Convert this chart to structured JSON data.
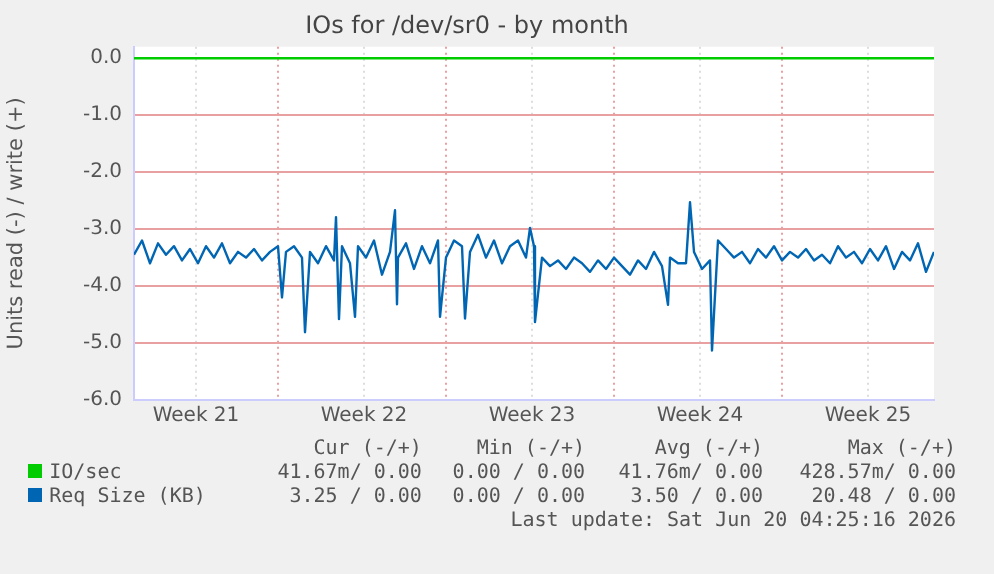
{
  "chart_data": {
    "type": "line",
    "title": "IOs for /dev/sr0 - by month",
    "ylabel": "Units read (-) / write (+)",
    "xlim": [
      "2026-05-19",
      "2026-06-21T08:00"
    ],
    "xticks": [
      {
        "value": "2026-05-21T14:00",
        "label": "Week 21"
      },
      {
        "value": "2026-05-25",
        "label": null
      },
      {
        "value": "2026-05-28T14:00",
        "label": "Week 22"
      },
      {
        "value": "2026-06-01",
        "label": null
      },
      {
        "value": "2026-06-04T14:00",
        "label": "Week 23"
      },
      {
        "value": "2026-06-08",
        "label": null
      },
      {
        "value": "2026-06-11T14:00",
        "label": "Week 24"
      },
      {
        "value": "2026-06-15",
        "label": null
      },
      {
        "value": "2026-06-18T14:00",
        "label": "Week 25"
      }
    ],
    "ylim": [
      -6,
      0.2
    ],
    "yticks": [
      {
        "value": 0,
        "label": "0.0"
      },
      {
        "value": -1,
        "label": "-1.0"
      },
      {
        "value": -2,
        "label": "-2.0"
      },
      {
        "value": -3,
        "label": "-3.0"
      },
      {
        "value": -4,
        "label": "-4.0"
      },
      {
        "value": -5,
        "label": "-5.0"
      },
      {
        "value": -6,
        "label": "-6.0"
      }
    ],
    "grid": true,
    "legend": "bottom left",
    "marker": "none",
    "line_style": "solid",
    "series": [
      {
        "name": "IO/sec",
        "color": "#00cc00",
        "x": [
          "2026-05-19",
          "2026-06-21T08:00"
        ],
        "values": [
          0,
          0
        ]
      },
      {
        "name": "Req Size (KB)",
        "color": "#0066b3",
        "x": [
          "2026-05-19T00:00",
          "2026-05-19T08:00",
          "2026-05-19T16:00",
          "2026-05-20T00:00",
          "2026-05-20T08:00",
          "2026-05-20T16:00",
          "2026-05-21T00:00",
          "2026-05-21T08:00",
          "2026-05-21T16:00",
          "2026-05-22T00:00",
          "2026-05-22T08:00",
          "2026-05-22T16:00",
          "2026-05-23T00:00",
          "2026-05-23T08:00",
          "2026-05-23T16:00",
          "2026-05-24T00:00",
          "2026-05-24T08:00",
          "2026-05-24T16:00",
          "2026-05-25T00:00",
          "2026-05-25T04:00",
          "2026-05-25T08:00",
          "2026-05-25T16:00",
          "2026-05-26T00:00",
          "2026-05-26T03:00",
          "2026-05-26T08:00",
          "2026-05-26T16:00",
          "2026-05-27T00:00",
          "2026-05-27T08:00",
          "2026-05-27T10:00",
          "2026-05-27T13:00",
          "2026-05-27T16:00",
          "2026-05-28T00:00",
          "2026-05-28T05:00",
          "2026-05-28T08:00",
          "2026-05-28T16:00",
          "2026-05-29T00:00",
          "2026-05-29T08:00",
          "2026-05-29T16:00",
          "2026-05-29T21:00",
          "2026-05-29T23:00",
          "2026-05-30T00:00",
          "2026-05-30T08:00",
          "2026-05-30T16:00",
          "2026-05-31T00:00",
          "2026-05-31T08:00",
          "2026-05-31T16:00",
          "2026-05-31T18:00",
          "2026-06-01T00:00",
          "2026-06-01T08:00",
          "2026-06-01T16:00",
          "2026-06-01T19:00",
          "2026-06-02T00:00",
          "2026-06-02T08:00",
          "2026-06-02T16:00",
          "2026-06-03T00:00",
          "2026-06-03T08:00",
          "2026-06-03T16:00",
          "2026-06-04T00:00",
          "2026-06-04T08:00",
          "2026-06-04T12:00",
          "2026-06-04T16:00",
          "2026-06-04T17:00",
          "2026-06-05T00:00",
          "2026-06-05T08:00",
          "2026-06-05T16:00",
          "2026-06-06T00:00",
          "2026-06-06T08:00",
          "2026-06-06T16:00",
          "2026-06-07T00:00",
          "2026-06-07T08:00",
          "2026-06-07T16:00",
          "2026-06-08T00:00",
          "2026-06-08T08:00",
          "2026-06-08T16:00",
          "2026-06-09T00:00",
          "2026-06-09T08:00",
          "2026-06-09T16:00",
          "2026-06-10T00:00",
          "2026-06-10T06:00",
          "2026-06-10T08:00",
          "2026-06-10T16:00",
          "2026-06-11T00:00",
          "2026-06-11T04:00",
          "2026-06-11T08:00",
          "2026-06-11T16:00",
          "2026-06-12T00:00",
          "2026-06-12T02:00",
          "2026-06-12T08:00",
          "2026-06-12T16:00",
          "2026-06-13T00:00",
          "2026-06-13T08:00",
          "2026-06-13T16:00",
          "2026-06-14T00:00",
          "2026-06-14T08:00",
          "2026-06-14T16:00",
          "2026-06-15T00:00",
          "2026-06-15T08:00",
          "2026-06-15T16:00",
          "2026-06-16T00:00",
          "2026-06-16T08:00",
          "2026-06-16T16:00",
          "2026-06-17T00:00",
          "2026-06-17T08:00",
          "2026-06-17T16:00",
          "2026-06-18T00:00",
          "2026-06-18T08:00",
          "2026-06-18T16:00",
          "2026-06-19T00:00",
          "2026-06-19T08:00",
          "2026-06-19T16:00",
          "2026-06-20T00:00",
          "2026-06-20T08:00",
          "2026-06-20T16:00",
          "2026-06-21T00:00",
          "2026-06-21T08:00"
        ],
        "values": [
          -3.45,
          -3.2,
          -3.6,
          -3.25,
          -3.45,
          -3.3,
          -3.55,
          -3.35,
          -3.6,
          -3.3,
          -3.5,
          -3.25,
          -3.6,
          -3.4,
          -3.5,
          -3.35,
          -3.55,
          -3.4,
          -3.3,
          -4.2,
          -3.4,
          -3.3,
          -3.5,
          -4.81,
          -3.4,
          -3.6,
          -3.3,
          -3.55,
          -2.79,
          -4.58,
          -3.3,
          -3.6,
          -4.54,
          -3.3,
          -3.5,
          -3.2,
          -3.8,
          -3.4,
          -2.67,
          -4.32,
          -3.5,
          -3.25,
          -3.7,
          -3.3,
          -3.6,
          -3.2,
          -4.54,
          -3.5,
          -3.2,
          -3.3,
          -4.57,
          -3.4,
          -3.1,
          -3.5,
          -3.2,
          -3.6,
          -3.3,
          -3.2,
          -3.5,
          -2.98,
          -3.3,
          -4.63,
          -3.5,
          -3.65,
          -3.55,
          -3.7,
          -3.5,
          -3.6,
          -3.75,
          -3.55,
          -3.7,
          -3.5,
          -3.65,
          -3.8,
          -3.55,
          -3.7,
          -3.4,
          -3.65,
          -4.33,
          -3.5,
          -3.6,
          -3.6,
          -2.53,
          -3.4,
          -3.7,
          -3.55,
          -5.13,
          -3.2,
          -3.35,
          -3.5,
          -3.4,
          -3.6,
          -3.35,
          -3.5,
          -3.3,
          -3.55,
          -3.4,
          -3.5,
          -3.35,
          -3.55,
          -3.45,
          -3.6,
          -3.3,
          -3.5,
          -3.4,
          -3.6,
          -3.35,
          -3.55,
          -3.3,
          -3.7,
          -3.4,
          -3.55,
          -3.25,
          -3.75,
          -3.4
        ]
      }
    ],
    "annotations": [
      "Cur (-/+)",
      "Min (-/+)",
      "Avg (-/+)",
      "Max (-/+)",
      "41.67m/ 0.00",
      "0.00 / 0.00",
      "41.76m/ 0.00",
      "428.57m/ 0.00",
      "3.25 / 0.00",
      "0.00 / 0.00",
      "3.50 / 0.00",
      "20.48 / 0.00",
      "Last update: Sat Jun 20 04:25:16 2026"
    ]
  }
}
